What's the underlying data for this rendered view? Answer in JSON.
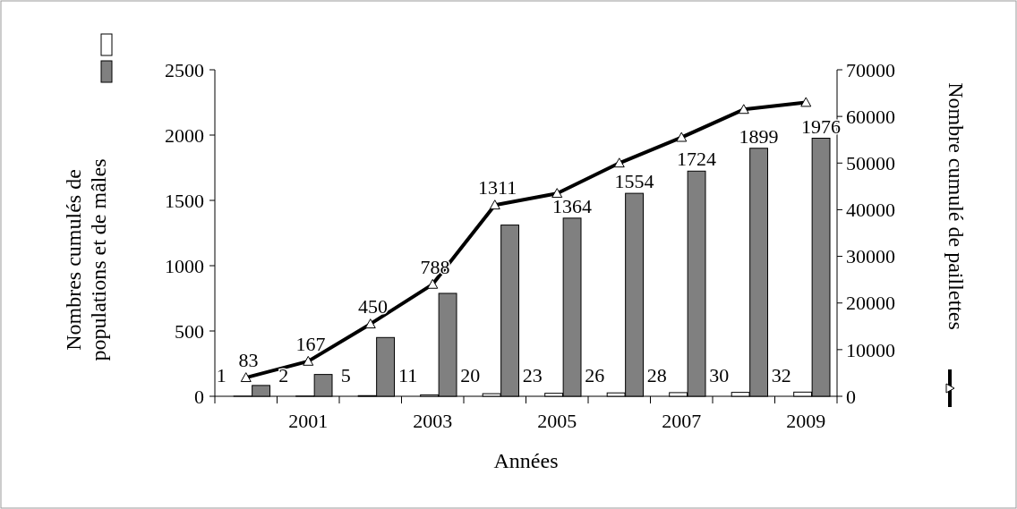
{
  "chart_data": {
    "type": "bar",
    "xlabel": "Années",
    "ylabel": "Nombres cumulés de populations et de mâles",
    "y2label": "Nombre cumulé de paillettes",
    "categories": [
      null,
      "2001",
      null,
      "2003",
      null,
      "2005",
      null,
      "2007",
      null,
      "2009"
    ],
    "series": [
      {
        "color": "#ffffff",
        "values": [
          1,
          2,
          5,
          11,
          20,
          23,
          26,
          28,
          30,
          32
        ],
        "value_labels": [
          "1",
          "2",
          "5",
          "11",
          "20",
          "23",
          "26",
          "28",
          "30",
          "32"
        ]
      },
      {
        "color": "#808080",
        "values": [
          83,
          167,
          450,
          788,
          1311,
          1364,
          1554,
          1724,
          1899,
          1976
        ],
        "value_labels": [
          "83",
          "167",
          "450",
          "788",
          "1311",
          "1364",
          "1554",
          "1724",
          "1899",
          "1976"
        ]
      },
      {
        "type": "line",
        "axis": "y2",
        "color": "#000000",
        "marker": "triangle",
        "values": [
          4000,
          7500,
          15500,
          24000,
          41000,
          43500,
          50000,
          55500,
          61500,
          63000
        ]
      }
    ],
    "ylim": [
      0,
      2500
    ],
    "yticks": [
      0,
      500,
      1000,
      1500,
      2000,
      2500
    ],
    "y2lim": [
      0,
      70000
    ],
    "y2ticks": [
      0,
      10000,
      20000,
      30000,
      40000,
      50000,
      60000,
      70000
    ],
    "grid": false
  }
}
